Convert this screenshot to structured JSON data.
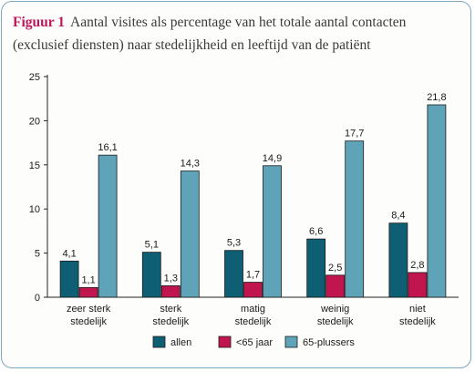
{
  "figure": {
    "label": "Figuur 1",
    "title": "Aantal visites als percentage van het totale aantal contacten (exclusief diensten) naar stedelijkheid en leeftijd van de patiënt"
  },
  "chart_data": {
    "type": "bar",
    "title": "Aantal visites als percentage van het totale aantal contacten (exclusief diensten) naar stedelijkheid en leeftijd van de patiënt",
    "categories": [
      [
        "zeer sterk",
        "stedelijk"
      ],
      [
        "sterk",
        "stedelijk"
      ],
      [
        "matig",
        "stedelijk"
      ],
      [
        "weinig",
        "stedelijk"
      ],
      [
        "niet",
        "stedelijk"
      ]
    ],
    "series": [
      {
        "name": "allen",
        "color": "#0e5f73",
        "values": [
          4.1,
          5.1,
          5.3,
          6.6,
          8.4
        ],
        "labels": [
          "4,1",
          "5,1",
          "5,3",
          "6,6",
          "8,4"
        ]
      },
      {
        "name": "<65 jaar",
        "color": "#c0154f",
        "values": [
          1.1,
          1.3,
          1.7,
          2.5,
          2.8
        ],
        "labels": [
          "1,1",
          "1,3",
          "1,7",
          "2,5",
          "2,8"
        ]
      },
      {
        "name": "65-plussers",
        "color": "#5fa3b8",
        "values": [
          16.1,
          14.3,
          14.9,
          17.7,
          21.8
        ],
        "labels": [
          "16,1",
          "14,3",
          "14,9",
          "17,7",
          "21,8"
        ]
      }
    ],
    "ylim": [
      0,
      25
    ],
    "yticks": [
      0,
      5,
      10,
      15,
      20,
      25
    ],
    "xlabel": "",
    "ylabel": "",
    "grid": false,
    "legend": "bottom"
  }
}
